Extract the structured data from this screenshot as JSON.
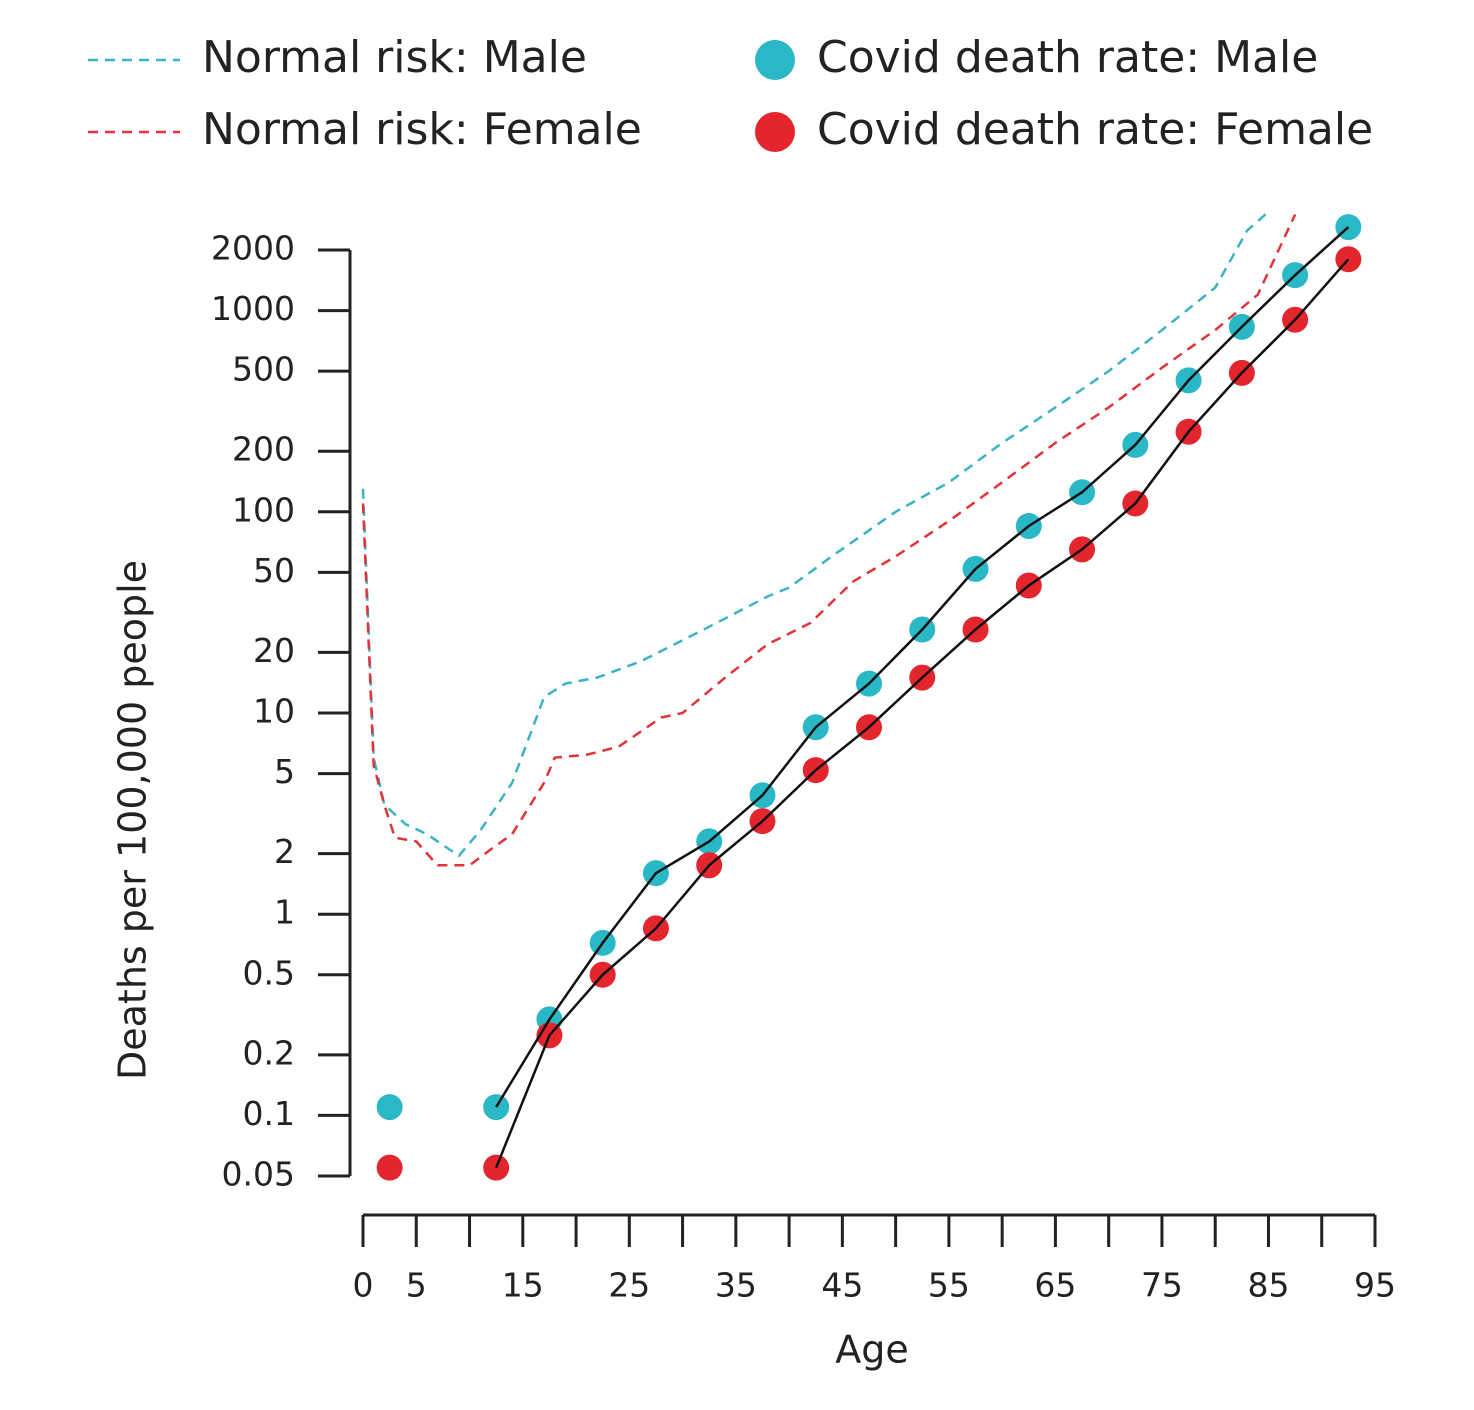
{
  "chart_data": {
    "type": "line",
    "xlabel": "Age",
    "ylabel": "Deaths per 100,000 people",
    "ylog": true,
    "ylim": [
      0.05,
      2000
    ],
    "yticks": [
      2000,
      1000,
      500,
      200,
      100,
      50,
      20,
      10,
      5,
      2,
      1,
      0.5,
      0.2,
      0.1,
      0.05
    ],
    "xlim": [
      0,
      95
    ],
    "xticks": [
      0,
      5,
      15,
      25,
      35,
      45,
      55,
      65,
      75,
      85,
      95
    ],
    "xminor_ticks": [
      10,
      20,
      30,
      40,
      50,
      60,
      70,
      80,
      90
    ],
    "series": [
      {
        "name": "Normal risk: Male",
        "color": "#3bb3c3",
        "style": "dashed",
        "x": [
          0,
          1,
          2,
          4,
          6,
          9,
          11,
          14,
          17,
          19,
          22,
          26,
          32,
          38,
          40,
          44,
          50,
          55,
          60,
          65,
          70,
          75,
          80,
          83,
          85
        ],
        "values": [
          130,
          6,
          3.5,
          2.8,
          2.5,
          1.95,
          2.6,
          4.5,
          12,
          14,
          15,
          18,
          26,
          38,
          42,
          60,
          100,
          140,
          220,
          330,
          500,
          800,
          1300,
          2500,
          3100
        ]
      },
      {
        "name": "Normal risk: Female",
        "color": "#e0343a",
        "style": "dashed",
        "x": [
          0,
          1,
          2,
          3,
          5,
          7,
          10,
          12,
          14,
          17,
          18,
          21,
          24,
          28,
          30,
          34,
          38,
          42,
          46,
          50,
          55,
          60,
          65,
          70,
          75,
          80,
          84,
          87.5
        ],
        "values": [
          110,
          5.5,
          3.5,
          2.4,
          2.3,
          1.75,
          1.75,
          2.1,
          2.5,
          4.5,
          6,
          6.2,
          6.8,
          9.5,
          10,
          15,
          22,
          28,
          45,
          60,
          90,
          140,
          220,
          330,
          520,
          800,
          1200,
          3000
        ]
      },
      {
        "name": "Covid death rate: Male",
        "color": "#2ab7c6",
        "style": "dots",
        "x": [
          2.5,
          12.5,
          17.5,
          22.5,
          27.5,
          32.5,
          37.5,
          42.5,
          47.5,
          52.5,
          57.5,
          62.5,
          67.5,
          72.5,
          77.5,
          82.5,
          87.5,
          92.5
        ],
        "values": [
          0.11,
          0.11,
          0.3,
          0.72,
          1.6,
          2.3,
          3.9,
          8.5,
          14,
          26,
          52,
          85,
          125,
          215,
          450,
          830,
          1500,
          2600
        ]
      },
      {
        "name": "Covid death rate: Female",
        "color": "#e3262e",
        "style": "dots",
        "x": [
          2.5,
          12.5,
          17.5,
          22.5,
          27.5,
          32.5,
          37.5,
          42.5,
          47.5,
          52.5,
          57.5,
          62.5,
          67.5,
          72.5,
          77.5,
          82.5,
          87.5,
          92.5
        ],
        "values": [
          0.055,
          0.055,
          0.25,
          0.5,
          0.85,
          1.75,
          2.9,
          5.2,
          8.5,
          15,
          26,
          43,
          65,
          110,
          250,
          490,
          900,
          1800
        ]
      }
    ]
  }
}
